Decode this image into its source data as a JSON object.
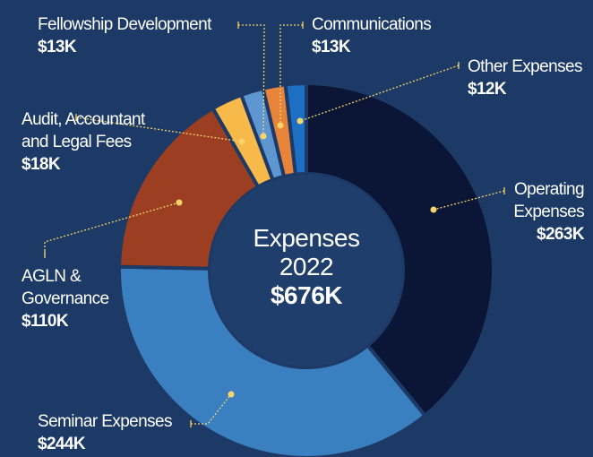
{
  "chart_data": {
    "type": "donut",
    "center_lines": [
      "Expenses",
      "2022"
    ],
    "total_label": "$676K",
    "categories": [
      "Operating Expenses",
      "Seminar Expenses",
      "AGLN & Governance",
      "Audit, Accountant and Legal Fees",
      "Fellowship Development",
      "Communications",
      "Other Expenses"
    ],
    "values": [
      263,
      244,
      110,
      18,
      13,
      13,
      12
    ],
    "value_labels": [
      "$263K",
      "$244K",
      "$110K",
      "$18K",
      "$13K",
      "$13K",
      "$12K"
    ],
    "colors": [
      "#0b1535",
      "#3a7fc0",
      "#9b3e22",
      "#f6b94a",
      "#5d96d0",
      "#e8833a",
      "#1c6fc3"
    ]
  }
}
